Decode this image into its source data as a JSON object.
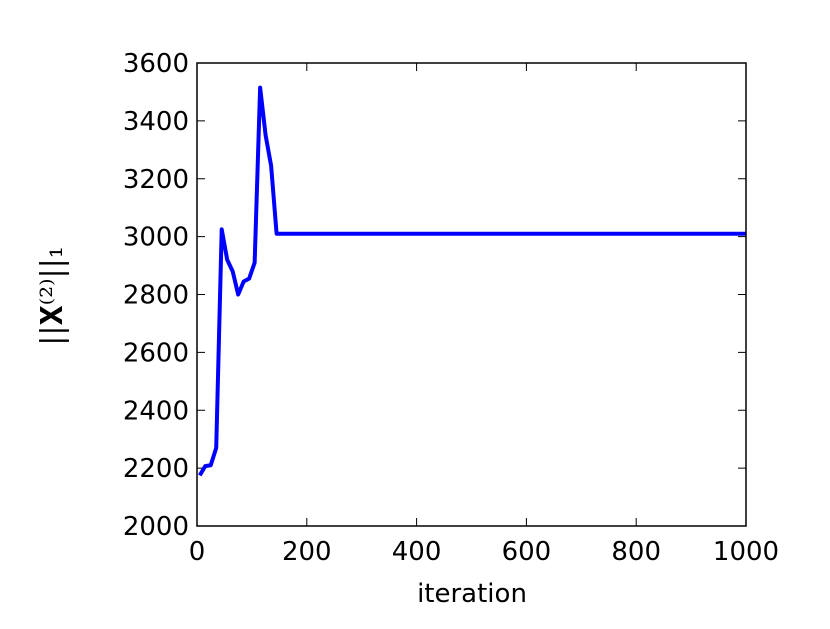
{
  "chart_data": {
    "type": "line",
    "xlabel": "iteration",
    "ylabel": "||𝐗⁽²⁾||₁",
    "x": [
      5,
      15,
      25,
      35,
      45,
      55,
      65,
      75,
      85,
      95,
      105,
      115,
      125,
      135,
      145,
      1000
    ],
    "series": [
      {
        "color": "#0000ff",
        "values": [
          2175,
          2207,
          2210,
          2270,
          3025,
          2920,
          2880,
          2800,
          2845,
          2855,
          2910,
          3515,
          3350,
          3245,
          3010,
          3010
        ]
      }
    ],
    "xlim": [
      0,
      1000
    ],
    "xticks": [
      0,
      200,
      400,
      600,
      800,
      1000
    ],
    "ylim": [
      2000,
      3600
    ],
    "yticks": [
      2000,
      2200,
      2400,
      2600,
      2800,
      3000,
      3200,
      3400,
      3600
    ],
    "grid": false
  }
}
